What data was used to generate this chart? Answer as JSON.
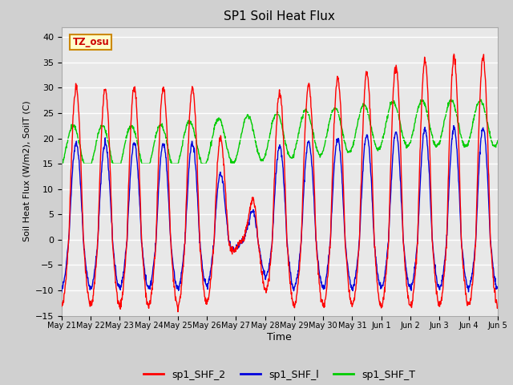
{
  "title": "SP1 Soil Heat Flux",
  "xlabel": "Time",
  "ylabel": "Soil Heat Flux (W/m2), SoilT (C)",
  "ylim": [
    -15,
    42
  ],
  "yticks": [
    -15,
    -10,
    -5,
    0,
    5,
    10,
    15,
    20,
    25,
    30,
    35,
    40
  ],
  "fig_bg": "#d0d0d0",
  "plot_bg": "#e8e8e8",
  "line_colors": {
    "shf2": "#ff0000",
    "shf1": "#0000dd",
    "shft": "#00cc00"
  },
  "tz_label": "TZ_osu",
  "tz_bg": "#ffffcc",
  "tz_border": "#cc8800",
  "n_days": 15,
  "x_tick_labels": [
    "May 21",
    "May 22",
    "May 23",
    "May 24",
    "May 25",
    "May 26",
    "May 27",
    "May 28",
    "May 29",
    "May 30",
    "May 31",
    "Jun 1",
    "Jun 2",
    "Jun 3",
    "Jun 4",
    "Jun 5"
  ],
  "legend_labels": [
    "sp1_SHF_2",
    "sp1_SHF_l",
    "sp1_SHF_T"
  ],
  "legend_colors": [
    "#ff0000",
    "#0000dd",
    "#00cc00"
  ]
}
